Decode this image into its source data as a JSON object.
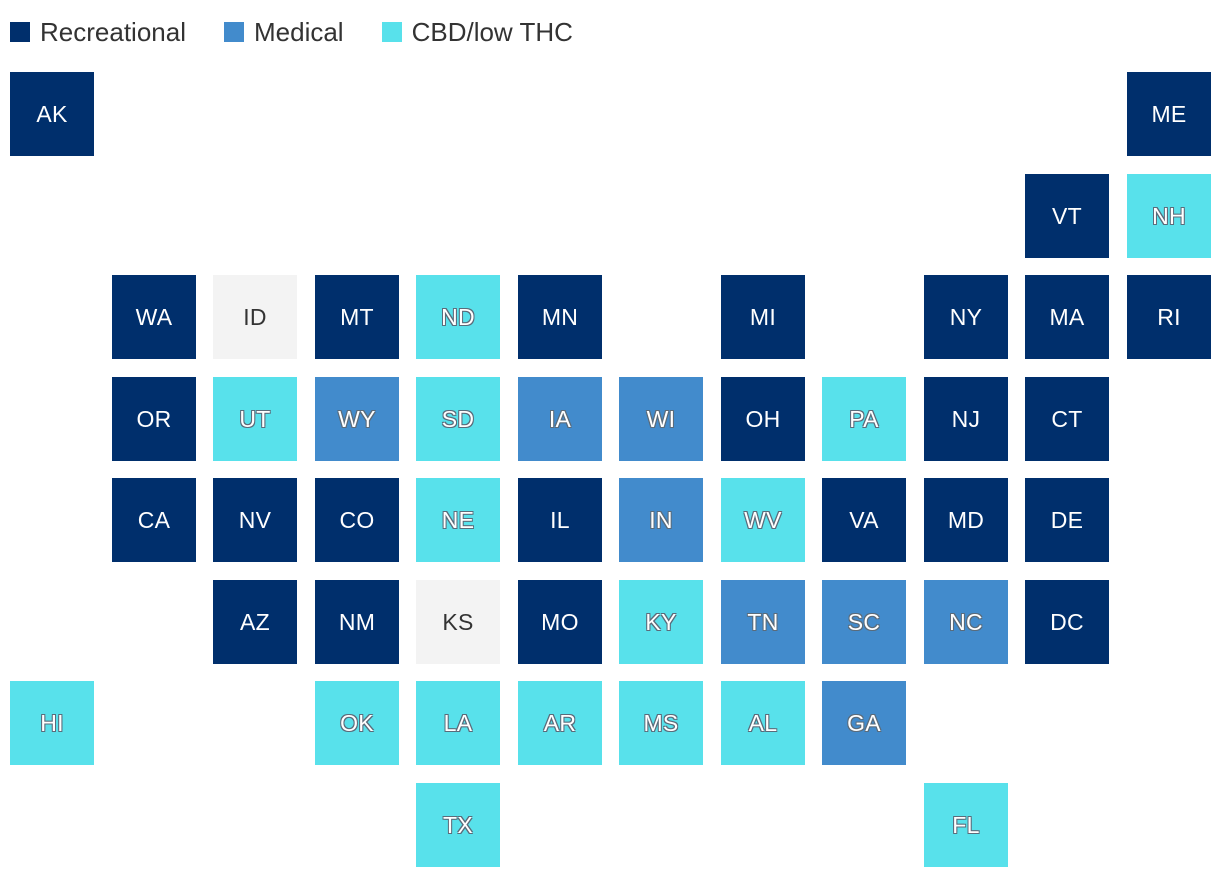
{
  "legend": [
    {
      "key": "recreational",
      "label": "Recreational",
      "color": "#002f6c"
    },
    {
      "key": "medical",
      "label": "Medical",
      "color": "#428bcc"
    },
    {
      "key": "cbd",
      "label": "CBD/low THC",
      "color": "#58e1eb"
    }
  ],
  "no_law_color": "#f3f3f3",
  "states": [
    {
      "code": "AK",
      "status": "recreational",
      "row": 0,
      "col": 0
    },
    {
      "code": "ME",
      "status": "recreational",
      "row": 0,
      "col": 11
    },
    {
      "code": "VT",
      "status": "recreational",
      "row": 1,
      "col": 10
    },
    {
      "code": "NH",
      "status": "cbd",
      "row": 1,
      "col": 11
    },
    {
      "code": "WA",
      "status": "recreational",
      "row": 2,
      "col": 1
    },
    {
      "code": "ID",
      "status": "none",
      "row": 2,
      "col": 2
    },
    {
      "code": "MT",
      "status": "recreational",
      "row": 2,
      "col": 3
    },
    {
      "code": "ND",
      "status": "cbd",
      "row": 2,
      "col": 4
    },
    {
      "code": "MN",
      "status": "recreational",
      "row": 2,
      "col": 5
    },
    {
      "code": "MI",
      "status": "recreational",
      "row": 2,
      "col": 7
    },
    {
      "code": "NY",
      "status": "recreational",
      "row": 2,
      "col": 9
    },
    {
      "code": "MA",
      "status": "recreational",
      "row": 2,
      "col": 10
    },
    {
      "code": "RI",
      "status": "recreational",
      "row": 2,
      "col": 11
    },
    {
      "code": "OR",
      "status": "recreational",
      "row": 3,
      "col": 1
    },
    {
      "code": "UT",
      "status": "cbd",
      "row": 3,
      "col": 2
    },
    {
      "code": "WY",
      "status": "medical",
      "row": 3,
      "col": 3
    },
    {
      "code": "SD",
      "status": "cbd",
      "row": 3,
      "col": 4
    },
    {
      "code": "IA",
      "status": "medical",
      "row": 3,
      "col": 5
    },
    {
      "code": "WI",
      "status": "medical",
      "row": 3,
      "col": 6
    },
    {
      "code": "OH",
      "status": "recreational",
      "row": 3,
      "col": 7
    },
    {
      "code": "PA",
      "status": "cbd",
      "row": 3,
      "col": 8
    },
    {
      "code": "NJ",
      "status": "recreational",
      "row": 3,
      "col": 9
    },
    {
      "code": "CT",
      "status": "recreational",
      "row": 3,
      "col": 10
    },
    {
      "code": "CA",
      "status": "recreational",
      "row": 4,
      "col": 1
    },
    {
      "code": "NV",
      "status": "recreational",
      "row": 4,
      "col": 2
    },
    {
      "code": "CO",
      "status": "recreational",
      "row": 4,
      "col": 3
    },
    {
      "code": "NE",
      "status": "cbd",
      "row": 4,
      "col": 4
    },
    {
      "code": "IL",
      "status": "recreational",
      "row": 4,
      "col": 5
    },
    {
      "code": "IN",
      "status": "medical",
      "row": 4,
      "col": 6
    },
    {
      "code": "WV",
      "status": "cbd",
      "row": 4,
      "col": 7
    },
    {
      "code": "VA",
      "status": "recreational",
      "row": 4,
      "col": 8
    },
    {
      "code": "MD",
      "status": "recreational",
      "row": 4,
      "col": 9
    },
    {
      "code": "DE",
      "status": "recreational",
      "row": 4,
      "col": 10
    },
    {
      "code": "AZ",
      "status": "recreational",
      "row": 5,
      "col": 2
    },
    {
      "code": "NM",
      "status": "recreational",
      "row": 5,
      "col": 3
    },
    {
      "code": "KS",
      "status": "none",
      "row": 5,
      "col": 4
    },
    {
      "code": "MO",
      "status": "recreational",
      "row": 5,
      "col": 5
    },
    {
      "code": "KY",
      "status": "cbd",
      "row": 5,
      "col": 6
    },
    {
      "code": "TN",
      "status": "medical",
      "row": 5,
      "col": 7
    },
    {
      "code": "SC",
      "status": "medical",
      "row": 5,
      "col": 8
    },
    {
      "code": "NC",
      "status": "medical",
      "row": 5,
      "col": 9
    },
    {
      "code": "DC",
      "status": "recreational",
      "row": 5,
      "col": 10
    },
    {
      "code": "HI",
      "status": "cbd",
      "row": 6,
      "col": 0
    },
    {
      "code": "OK",
      "status": "cbd",
      "row": 6,
      "col": 3
    },
    {
      "code": "LA",
      "status": "cbd",
      "row": 6,
      "col": 4
    },
    {
      "code": "AR",
      "status": "cbd",
      "row": 6,
      "col": 5
    },
    {
      "code": "MS",
      "status": "cbd",
      "row": 6,
      "col": 6
    },
    {
      "code": "AL",
      "status": "cbd",
      "row": 6,
      "col": 7
    },
    {
      "code": "GA",
      "status": "medical",
      "row": 6,
      "col": 8
    },
    {
      "code": "TX",
      "status": "cbd",
      "row": 7,
      "col": 4
    },
    {
      "code": "FL",
      "status": "cbd",
      "row": 7,
      "col": 9
    }
  ]
}
